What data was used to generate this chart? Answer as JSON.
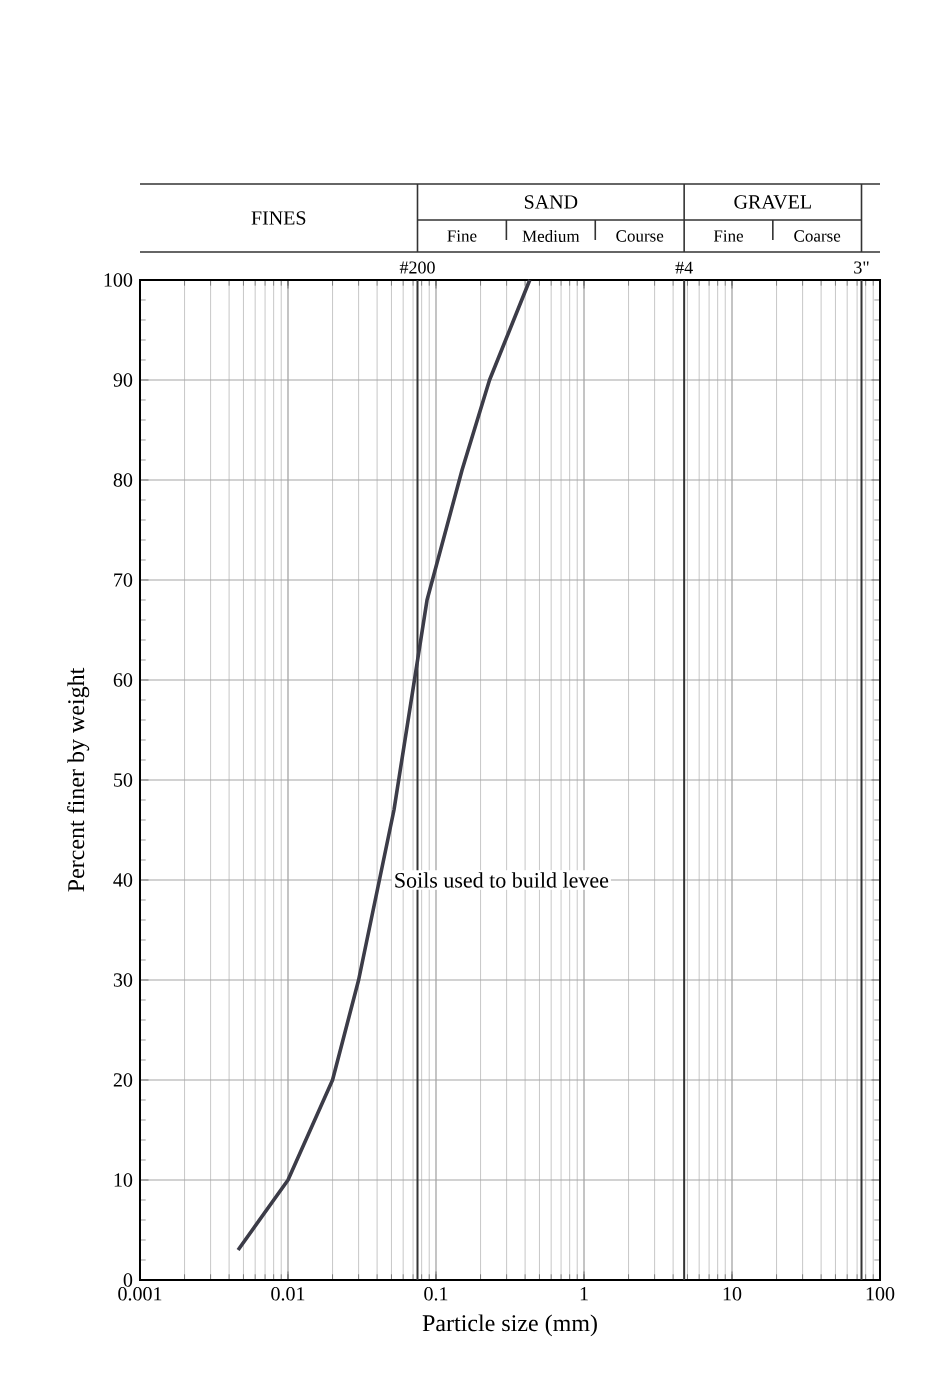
{
  "chart_data": {
    "type": "line",
    "xlabel": "Particle size (mm)",
    "ylabel": "Percent finer by weight",
    "log": "x",
    "xlim": [
      0.001,
      100
    ],
    "ylim": [
      0,
      100
    ],
    "xticks": [
      0.001,
      0.01,
      0.1,
      1,
      10,
      100
    ],
    "yticks": [
      0,
      10,
      20,
      30,
      40,
      50,
      60,
      70,
      80,
      90,
      100
    ],
    "grid": true,
    "marker": "none",
    "line_style": "solid",
    "series": [
      {
        "color": "#3c3c48",
        "x": [
          0.0046,
          0.01,
          0.02,
          0.03,
          0.052,
          0.087,
          0.15,
          0.23,
          0.43
        ],
        "values": [
          3,
          10,
          20,
          30,
          47,
          68,
          81,
          90,
          100
        ]
      }
    ],
    "ref_lines": [
      {
        "axis": "x",
        "value": 0.075
      },
      {
        "axis": "x",
        "value": 4.75
      },
      {
        "axis": "x",
        "value": 75
      }
    ],
    "annotations": [
      {
        "text": "Soils used to build levee",
        "x": 0.05,
        "y": 40
      },
      "FINES",
      "SAND",
      "GRAVEL",
      "Fine",
      "Medium",
      "Course",
      "Fine",
      "Coarse",
      "#200",
      "#4",
      "3\""
    ]
  }
}
